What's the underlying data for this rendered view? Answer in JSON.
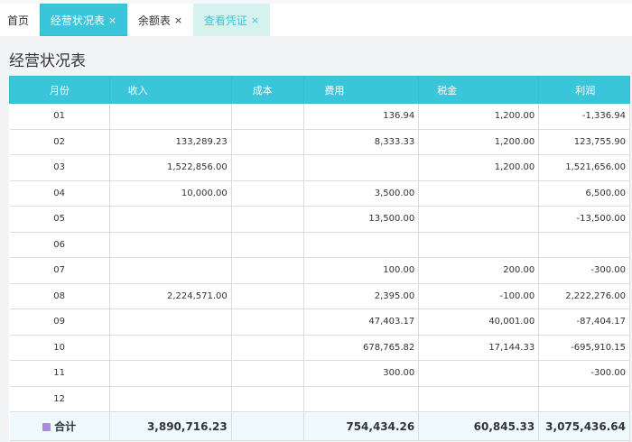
{
  "tabs": [
    {
      "label": "首页",
      "closable": false
    },
    {
      "label": "经营状况表",
      "closable": true
    },
    {
      "label": "余额表",
      "closable": true
    },
    {
      "label": "查看凭证",
      "closable": true
    }
  ],
  "close_glyph": "×",
  "page_title": "经营状况表",
  "colors": {
    "accent": "#3bc5da",
    "preview_tab": "#d5f2ee",
    "total_row": "#eefaff"
  },
  "table": {
    "headers": [
      "月份",
      "收入",
      "成本",
      "费用",
      "税金",
      "利润"
    ],
    "rows": [
      [
        "01",
        "",
        "",
        "136.94",
        "1,200.00",
        "-1,336.94"
      ],
      [
        "02",
        "133,289.23",
        "",
        "8,333.33",
        "1,200.00",
        "123,755.90"
      ],
      [
        "03",
        "1,522,856.00",
        "",
        "",
        "1,200.00",
        "1,521,656.00"
      ],
      [
        "04",
        "10,000.00",
        "",
        "3,500.00",
        "",
        "6,500.00"
      ],
      [
        "05",
        "",
        "",
        "13,500.00",
        "",
        "-13,500.00"
      ],
      [
        "06",
        "",
        "",
        "",
        "",
        ""
      ],
      [
        "07",
        "",
        "",
        "100.00",
        "200.00",
        "-300.00"
      ],
      [
        "08",
        "2,224,571.00",
        "",
        "2,395.00",
        "-100.00",
        "2,222,276.00"
      ],
      [
        "09",
        "",
        "",
        "47,403.17",
        "40,001.00",
        "-87,404.17"
      ],
      [
        "10",
        "",
        "",
        "678,765.82",
        "17,144.33",
        "-695,910.15"
      ],
      [
        "11",
        "",
        "",
        "300.00",
        "",
        "-300.00"
      ],
      [
        "12",
        "",
        "",
        "",
        "",
        ""
      ]
    ],
    "total": {
      "icon": "calculator-icon",
      "label": "合计",
      "values": [
        "3,890,716.23",
        "",
        "754,434.26",
        "60,845.33",
        "3,075,436.64"
      ]
    }
  }
}
